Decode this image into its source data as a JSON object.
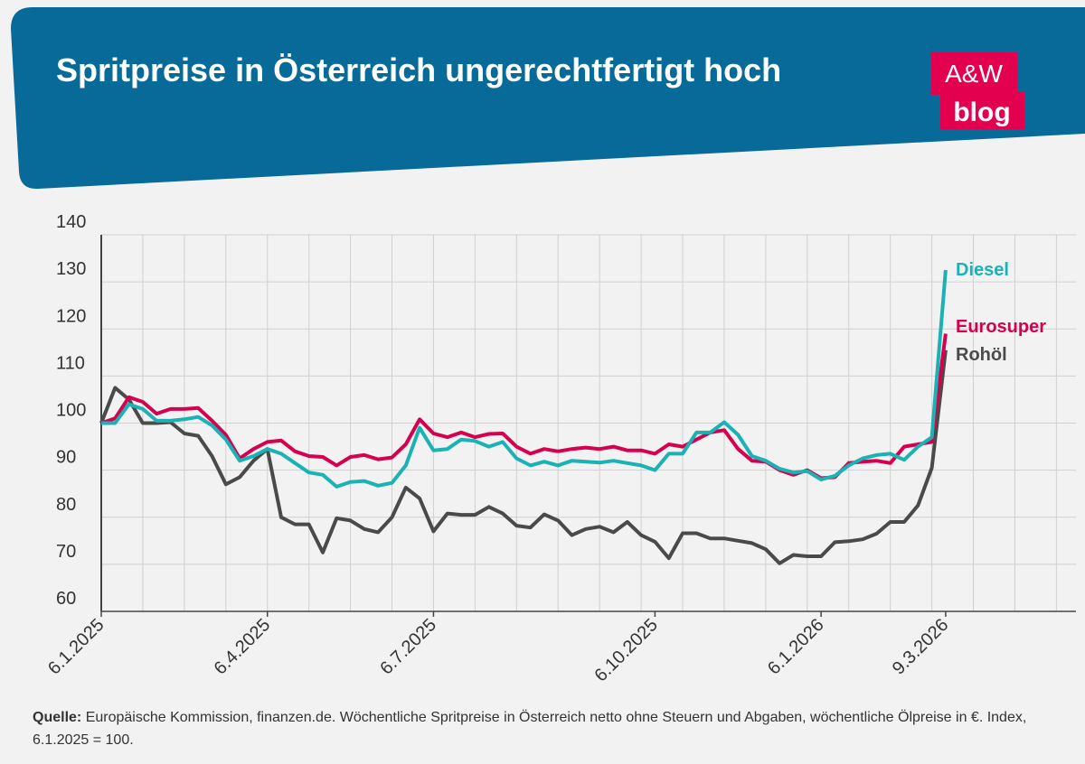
{
  "chart_data": {
    "type": "line",
    "title": "Spritpreise in Österreich ungerechtfertigt hoch",
    "logo_top": "A&W",
    "logo_bottom": "blog",
    "source_label": "Quelle:",
    "source": "Europäische Kommission, finanzen.de. Wöchentliche Spritpreise in Österreich netto ohne Steuern und Abgaben, wöchentliche Ölpreise in €. Index, 6.1.2025 = 100.",
    "categories": [
      "6.1.2025",
      null,
      null,
      null,
      null,
      null,
      null,
      null,
      null,
      null,
      null,
      null,
      "6.4.2025",
      null,
      null,
      null,
      null,
      null,
      null,
      null,
      null,
      null,
      null,
      null,
      "6.7.2025",
      null,
      null,
      null,
      null,
      null,
      null,
      null,
      null,
      null,
      null,
      null,
      null,
      null,
      null,
      null,
      "6.10.2025",
      null,
      null,
      null,
      null,
      null,
      null,
      null,
      null,
      null,
      null,
      null,
      "6.1.2026",
      null,
      null,
      null,
      null,
      null,
      null,
      null,
      null,
      "9.3.2026"
    ],
    "series": [
      {
        "name": "Diesel",
        "color": "#1ab2b4",
        "values": [
          100,
          100,
          104,
          103,
          100.5,
          100.5,
          100.8,
          101.3,
          99.5,
          96.5,
          92,
          93,
          94.5,
          93.5,
          91.5,
          89.5,
          89,
          86.5,
          87.5,
          87.7,
          86.7,
          87.3,
          91,
          99,
          94.2,
          94.5,
          96.5,
          96.2,
          95,
          96,
          92.5,
          91,
          91.8,
          91,
          92,
          91.8,
          91.6,
          92,
          91.5,
          91,
          90,
          93.5,
          93.5,
          98,
          98,
          100.2,
          97.5,
          93,
          92,
          90.3,
          89.5,
          89.8,
          88,
          88.8,
          91,
          92.5,
          93.2,
          93.5,
          92.2,
          95,
          97,
          132.5
        ]
      },
      {
        "name": "Eurosuper",
        "color": "#d6004f",
        "values": [
          100,
          101,
          105.5,
          104.5,
          102,
          103,
          103,
          103.2,
          100.5,
          97.5,
          92.5,
          94.5,
          96,
          96.3,
          94,
          93,
          92.8,
          91,
          92.8,
          93.2,
          92.3,
          92.7,
          95.5,
          100.8,
          97.8,
          97,
          98,
          97,
          97.7,
          97.8,
          95,
          93.5,
          94.5,
          94,
          94.5,
          94.8,
          94.5,
          95,
          94.2,
          94.2,
          93.5,
          95.5,
          95,
          96.5,
          98,
          98.5,
          94.5,
          92,
          91.8,
          90,
          89,
          90,
          88.3,
          88.5,
          91.5,
          91.8,
          92,
          91.5,
          95,
          95.5,
          96,
          119
        ]
      },
      {
        "name": "Rohöl",
        "color": "#4a4a4a",
        "values": [
          100,
          107.5,
          105,
          100,
          100,
          100.2,
          97.8,
          97.3,
          93,
          87,
          88.5,
          92,
          94.5,
          80,
          78.5,
          78.5,
          72.5,
          79.8,
          79.3,
          77.5,
          76.8,
          80,
          86.3,
          84,
          77,
          80.8,
          80.5,
          80.5,
          82.2,
          80.8,
          78.2,
          77.8,
          80.6,
          79.3,
          76.2,
          77.5,
          78,
          76.8,
          79,
          76.2,
          74.8,
          71.3,
          76.6,
          76.6,
          75.5,
          75.5,
          75,
          74.5,
          73.2,
          70.2,
          72,
          71.7,
          71.7,
          74.7,
          74.9,
          75.3,
          76.5,
          79,
          79,
          82.5,
          90.5,
          115.5
        ]
      }
    ],
    "ylim": [
      60,
      140
    ],
    "yticks": [
      60,
      70,
      80,
      90,
      100,
      110,
      120,
      130,
      140
    ],
    "grid": true
  }
}
